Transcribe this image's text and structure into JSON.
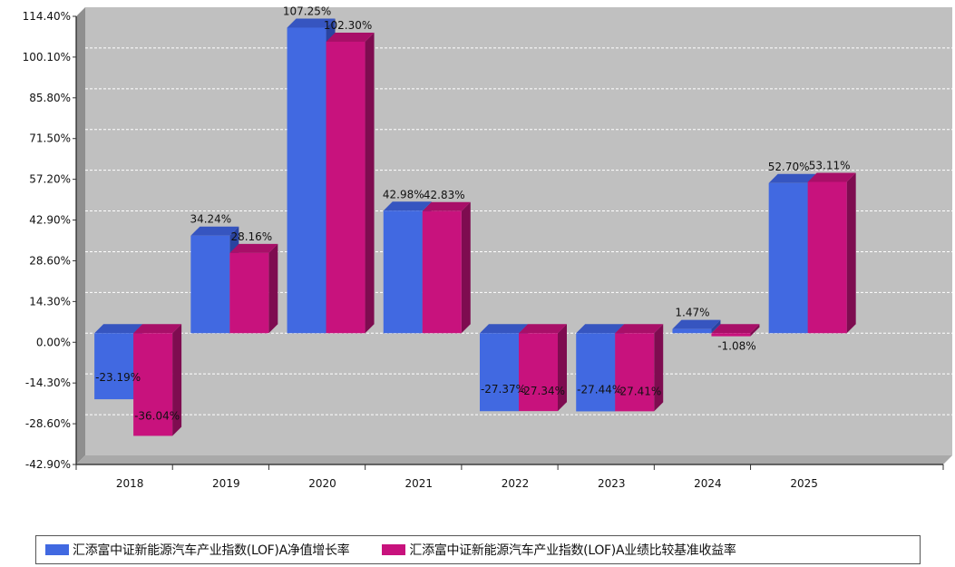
{
  "colors": {
    "series_a": "#4169e1",
    "series_a_dark": "#2a44a0",
    "series_a_top": "#3655c0",
    "series_b": "#c8127d",
    "series_b_dark": "#7e0c50",
    "series_b_top": "#a80f68",
    "plot_bg": "#c0c0c0",
    "wall_side": "#8f8f8f",
    "floor": "#a9a9a9",
    "grid": "#ffffff"
  },
  "chart_data": {
    "type": "bar",
    "categories": [
      "2018",
      "2019",
      "2020",
      "2021",
      "2022",
      "2023",
      "2024",
      "2025"
    ],
    "series": [
      {
        "name": "汇添富中证新能源汽车产业指数(LOF)A净值增长率",
        "values": [
          -23.19,
          34.24,
          107.25,
          42.98,
          -27.37,
          -27.44,
          1.47,
          52.7
        ],
        "labels": [
          "-23.19%",
          "34.24%",
          "107.25%",
          "42.98%",
          "-27.37%",
          "-27.44%",
          "1.47%",
          "52.70%"
        ]
      },
      {
        "name": "汇添富中证新能源汽车产业指数(LOF)A业绩比较基准收益率",
        "values": [
          -36.04,
          28.16,
          102.3,
          42.83,
          -27.34,
          -27.41,
          -1.08,
          53.11
        ],
        "labels": [
          "-36.04%",
          "28.16%",
          "102.30%",
          "42.83%",
          "-27.34%",
          "-27.41%",
          "-1.08%",
          "53.11%"
        ]
      }
    ],
    "yticks": [
      114.4,
      100.1,
      85.8,
      71.5,
      57.2,
      42.9,
      28.6,
      14.3,
      0.0,
      -14.3,
      -28.6,
      -42.9
    ],
    "ytick_labels": [
      "114.40%",
      "100.10%",
      "85.80%",
      "71.50%",
      "57.20%",
      "42.90%",
      "28.60%",
      "14.30%",
      "0.00%",
      "-14.30%",
      "-28.60%",
      "-42.90%"
    ],
    "ylim": [
      -42.9,
      114.4
    ],
    "grid": true,
    "legend_position": "bottom"
  }
}
